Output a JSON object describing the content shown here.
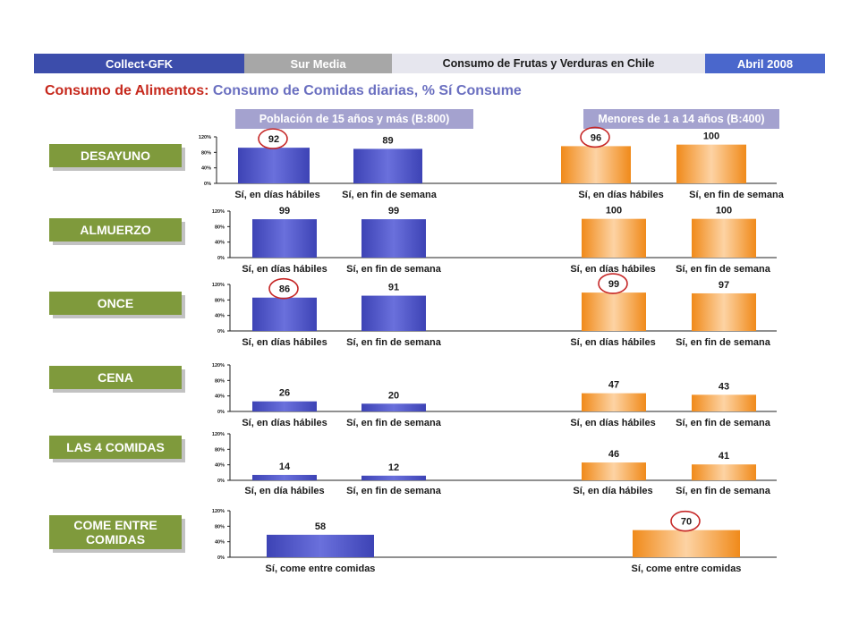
{
  "header": {
    "segments": [
      "Collect-GFK",
      "Sur Media",
      "Consumo de Frutas y Verduras en Chile",
      "Abril 2008"
    ]
  },
  "title": {
    "prefix": "Consumo de Alimentos:",
    "rest": " Consumo de Comidas diarias, % Sí Consume"
  },
  "groups": {
    "left": "Población de 15 años y más (B:800)",
    "right": "Menores de 1 a 14 años (B:400)"
  },
  "colors": {
    "blue": "#4f55c9",
    "orange": "#f08b1c",
    "label_green": "#7f9a3c",
    "circle": "#c62828"
  },
  "chart_data": {
    "type": "bar",
    "title": "Consumo de Comidas diarias, % Sí Consume",
    "yticks": [
      "0%",
      "40%",
      "80%",
      "120%"
    ],
    "ylim": [
      0,
      120
    ],
    "series": [
      {
        "name": "Población de 15 años y más (B:800)",
        "color": "#4f55c9"
      },
      {
        "name": "Menores de 1 a 14 años (B:400)",
        "color": "#f08b1c"
      }
    ],
    "rows": [
      {
        "label": "DESAYUNO",
        "categories": [
          "Sí, en días hábiles",
          "Sí, en fin de semana"
        ],
        "adults": [
          92,
          89
        ],
        "children": [
          96,
          100
        ],
        "circled": {
          "adults": 0,
          "children": 0
        }
      },
      {
        "label": "ALMUERZO",
        "categories": [
          "Sí, en días hábiles",
          "Sí, en fin de semana"
        ],
        "adults": [
          99,
          99
        ],
        "children": [
          100,
          100
        ],
        "circled": {}
      },
      {
        "label": "ONCE",
        "categories": [
          "Sí, en días hábiles",
          "Sí, en fin de semana"
        ],
        "adults": [
          86,
          91
        ],
        "children": [
          99,
          97
        ],
        "circled": {
          "adults": 0,
          "children": 0
        }
      },
      {
        "label": "CENA",
        "categories": [
          "Sí, en días hábiles",
          "Sí, en fin de semana"
        ],
        "adults": [
          26,
          20
        ],
        "children": [
          47,
          43
        ],
        "circled": {}
      },
      {
        "label": "LAS 4 COMIDAS",
        "categories": [
          "Sí, en día hábiles",
          "Sí, en fin de semana"
        ],
        "adults": [
          14,
          12
        ],
        "children": [
          46,
          41
        ],
        "circled": {}
      },
      {
        "label": "COME ENTRE COMIDAS",
        "categories": [
          "Sí, come entre comidas"
        ],
        "adults": [
          58
        ],
        "children": [
          70
        ],
        "circled": {
          "children": 0
        }
      }
    ]
  }
}
